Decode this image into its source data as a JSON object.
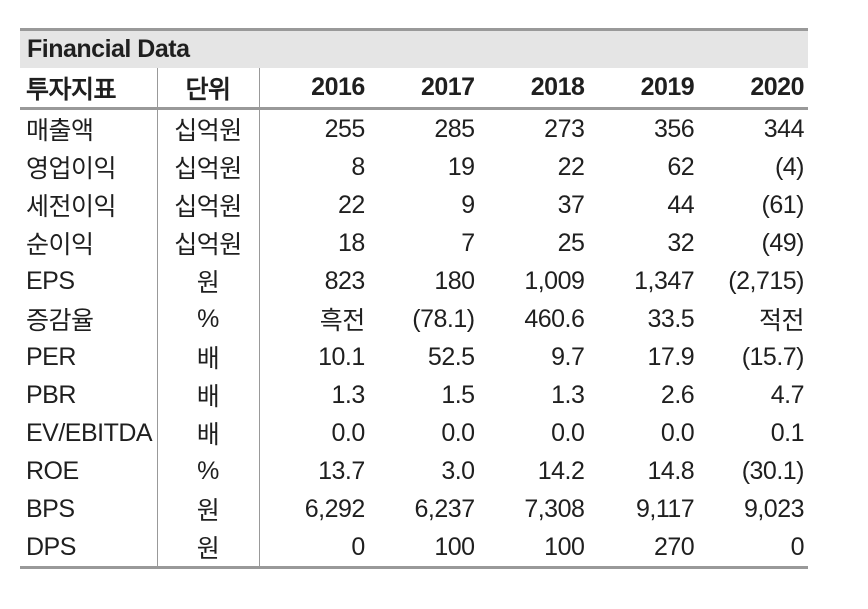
{
  "header": {
    "title": "Financial Data"
  },
  "table": {
    "columns": [
      "투자지표",
      "단위",
      "2016",
      "2017",
      "2018",
      "2019",
      "2020"
    ],
    "rows": [
      {
        "label": "매출액",
        "unit": "십억원",
        "values": [
          "255",
          "285",
          "273",
          "356",
          "344"
        ]
      },
      {
        "label": "영업이익",
        "unit": "십억원",
        "values": [
          "8",
          "19",
          "22",
          "62",
          "(4)"
        ]
      },
      {
        "label": "세전이익",
        "unit": "십억원",
        "values": [
          "22",
          "9",
          "37",
          "44",
          "(61)"
        ]
      },
      {
        "label": "순이익",
        "unit": "십억원",
        "values": [
          "18",
          "7",
          "25",
          "32",
          "(49)"
        ]
      },
      {
        "label": "EPS",
        "unit": "원",
        "values": [
          "823",
          "180",
          "1,009",
          "1,347",
          "(2,715)"
        ]
      },
      {
        "label": "증감율",
        "unit": "%",
        "values": [
          "흑전",
          "(78.1)",
          "460.6",
          "33.5",
          "적전"
        ]
      },
      {
        "label": "PER",
        "unit": "배",
        "values": [
          "10.1",
          "52.5",
          "9.7",
          "17.9",
          "(15.7)"
        ]
      },
      {
        "label": "PBR",
        "unit": "배",
        "values": [
          "1.3",
          "1.5",
          "1.3",
          "2.6",
          "4.7"
        ]
      },
      {
        "label": "EV/EBITDA",
        "unit": "배",
        "values": [
          "0.0",
          "0.0",
          "0.0",
          "0.0",
          "0.1"
        ]
      },
      {
        "label": "ROE",
        "unit": "%",
        "values": [
          "13.7",
          "3.0",
          "14.2",
          "14.8",
          "(30.1)"
        ]
      },
      {
        "label": "BPS",
        "unit": "원",
        "values": [
          "6,292",
          "6,237",
          "7,308",
          "9,117",
          "9,023"
        ]
      },
      {
        "label": "DPS",
        "unit": "원",
        "values": [
          "0",
          "100",
          "100",
          "270",
          "0"
        ]
      }
    ]
  },
  "colors": {
    "title_bar_bg": "#e5e5e5",
    "border": "#999999",
    "text": "#1f1f1f"
  }
}
